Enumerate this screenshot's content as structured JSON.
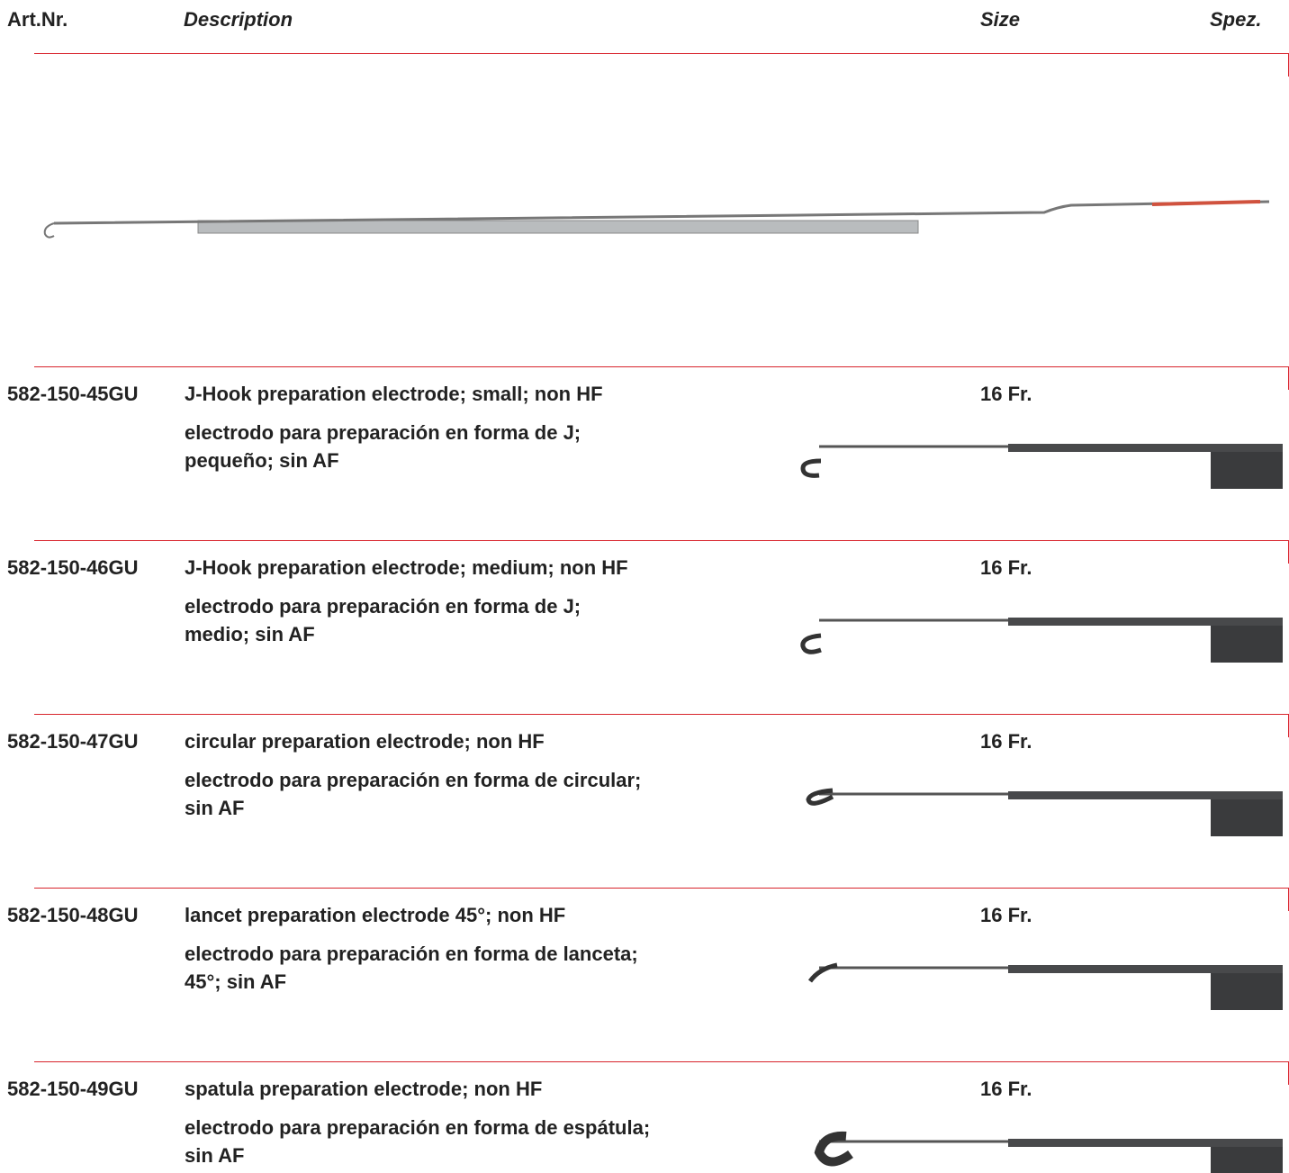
{
  "header": {
    "art_nr": "Art.Nr.",
    "description": "Description",
    "size": "Size",
    "spez": "Spez."
  },
  "rows": [
    {
      "art_nr": "582-150-45GU",
      "en": "J-Hook preparation electrode; small; non HF",
      "es": [
        "electrodo para preparación en forma de J;",
        "pequeño; sin AF"
      ],
      "size": "16 Fr."
    },
    {
      "art_nr": "582-150-46GU",
      "en": "J-Hook preparation electrode; medium; non HF",
      "es": [
        "electrodo para preparación en forma de J;",
        "medio; sin AF"
      ],
      "size": "16 Fr."
    },
    {
      "art_nr": "582-150-47GU",
      "en": "circular preparation electrode; non HF",
      "es": [
        "electrodo para preparación en forma de circular;",
        "sin AF"
      ],
      "size": "16 Fr."
    },
    {
      "art_nr": "582-150-48GU",
      "en": "lancet preparation electrode 45°; non HF",
      "es": [
        "electrodo para preparación en forma de lanceta;",
        "45°; sin AF"
      ],
      "size": "16 Fr."
    },
    {
      "art_nr": "582-150-49GU",
      "en": "spatula preparation electrode; non HF",
      "es": [
        "electrodo para preparación en forma de espátula;",
        "sin AF"
      ],
      "size": "16 Fr."
    }
  ]
}
